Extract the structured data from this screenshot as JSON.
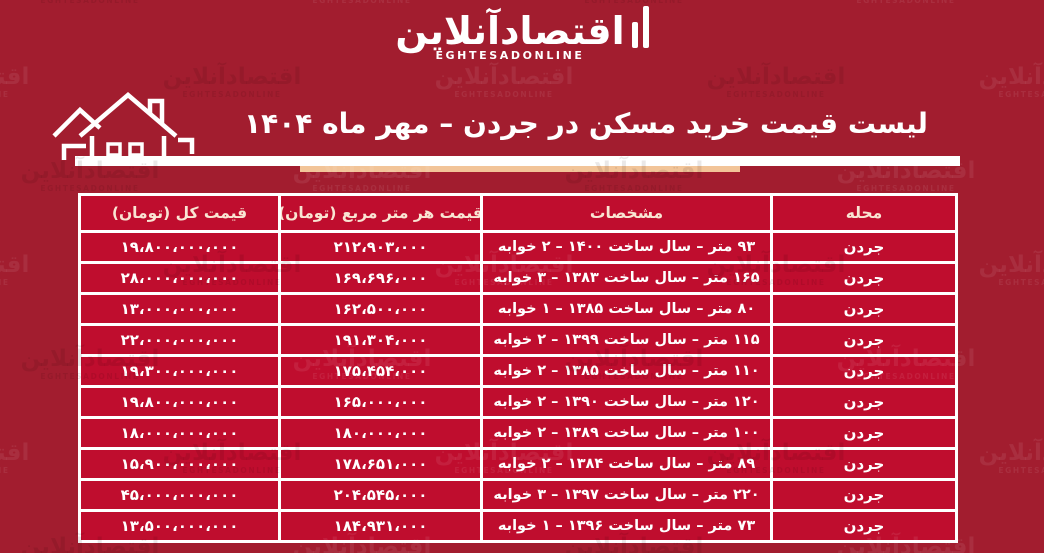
{
  "colors": {
    "background": "#A21D2F",
    "cell_red": "#BF0D2E",
    "header_text": "#F9E5D3",
    "rule_white": "#FFFFFF",
    "rule_peach": "#F2C498"
  },
  "logo": {
    "persian": "اقتصادآنلاین",
    "latin": "EGHTESADONLINE"
  },
  "watermark": {
    "persian": "اقتصادآنلاین",
    "latin": "EGHTESADONLINE"
  },
  "header": {
    "title": "لیست قیمت خرید مسکن در جردن – مهر ماه ۱۴۰۴"
  },
  "table": {
    "columns": [
      {
        "key": "neighborhood",
        "label": "محله"
      },
      {
        "key": "specs",
        "label": "مشخصات"
      },
      {
        "key": "price_per_m2",
        "label": "قیمت هر متر مربع (تومان)"
      },
      {
        "key": "total_price",
        "label": "قیمت کل (تومان)"
      }
    ],
    "rows": [
      {
        "neighborhood": "جردن",
        "specs": "۹۳ متر – سال ساخت ۱۴۰۰ – ۲ خوابه",
        "price_per_m2": "۲۱۲،۹۰۳،۰۰۰",
        "total_price": "۱۹،۸۰۰،۰۰۰،۰۰۰"
      },
      {
        "neighborhood": "جردن",
        "specs": "۱۶۵ متر – سال ساخت ۱۳۸۳ – ۳ خوابه",
        "price_per_m2": "۱۶۹،۶۹۶،۰۰۰",
        "total_price": "۲۸،۰۰۰،۰۰۰،۰۰۰"
      },
      {
        "neighborhood": "جردن",
        "specs": "۸۰ متر – سال ساخت ۱۳۸۵ – ۱ خوابه",
        "price_per_m2": "۱۶۲،۵۰۰،۰۰۰",
        "total_price": "۱۳،۰۰۰،۰۰۰،۰۰۰"
      },
      {
        "neighborhood": "جردن",
        "specs": "۱۱۵ متر – سال ساخت ۱۳۹۹ – ۲ خوابه",
        "price_per_m2": "۱۹۱،۳۰۴،۰۰۰",
        "total_price": "۲۲،۰۰۰،۰۰۰،۰۰۰"
      },
      {
        "neighborhood": "جردن",
        "specs": "۱۱۰ متر – سال ساخت ۱۳۸۵ – ۲ خوابه",
        "price_per_m2": "۱۷۵،۴۵۴،۰۰۰",
        "total_price": "۱۹،۳۰۰،۰۰۰،۰۰۰"
      },
      {
        "neighborhood": "جردن",
        "specs": "۱۲۰ متر – سال ساخت ۱۳۹۰ – ۲ خوابه",
        "price_per_m2": "۱۶۵،۰۰۰،۰۰۰",
        "total_price": "۱۹،۸۰۰،۰۰۰،۰۰۰"
      },
      {
        "neighborhood": "جردن",
        "specs": "۱۰۰ متر – سال ساخت ۱۳۸۹ – ۲ خوابه",
        "price_per_m2": "۱۸۰،۰۰۰،۰۰۰",
        "total_price": "۱۸،۰۰۰،۰۰۰،۰۰۰"
      },
      {
        "neighborhood": "جردن",
        "specs": "۸۹ متر – سال ساخت ۱۳۸۴ – ۲ خوابه",
        "price_per_m2": "۱۷۸،۶۵۱،۰۰۰",
        "total_price": "۱۵،۹۰۰،۰۰۰،۰۰۰"
      },
      {
        "neighborhood": "جردن",
        "specs": "۲۲۰ متر – سال ساخت ۱۳۹۷ – ۳ خوابه",
        "price_per_m2": "۲۰۴،۵۴۵،۰۰۰",
        "total_price": "۴۵،۰۰۰،۰۰۰،۰۰۰"
      },
      {
        "neighborhood": "جردن",
        "specs": "۷۳ متر – سال ساخت ۱۳۹۶ – ۱ خوابه",
        "price_per_m2": "۱۸۴،۹۳۱،۰۰۰",
        "total_price": "۱۳،۵۰۰،۰۰۰،۰۰۰"
      }
    ]
  }
}
